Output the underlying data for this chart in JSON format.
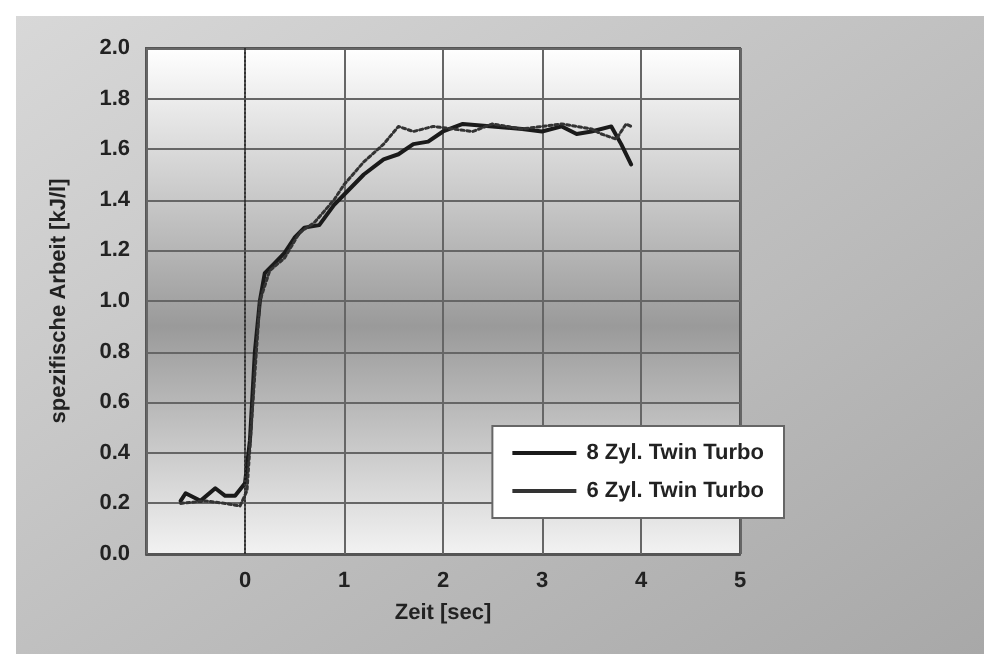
{
  "chart_data": {
    "type": "line",
    "xlabel": "Zeit [sec]",
    "ylabel": "spezifische Arbeit [kJ/l]",
    "xlim": [
      -1,
      5
    ],
    "xticks": [
      {
        "value": -1,
        "label": null
      },
      0,
      1,
      2,
      3,
      4,
      5
    ],
    "ylim": [
      0,
      2
    ],
    "yticks": [
      {
        "value": 0,
        "label": "0.0"
      },
      0.2,
      0.4,
      0.6,
      0.8,
      {
        "value": 1,
        "label": "1.0"
      },
      1.2,
      1.4,
      1.6,
      1.8,
      {
        "value": 2,
        "label": "2.0"
      }
    ],
    "grid": true,
    "legend": "bottom right",
    "marker": "none",
    "ref_lines": [
      {
        "axis": "x",
        "value": 0,
        "line_style": "dotted",
        "color": "#333333"
      }
    ],
    "series": [
      {
        "name": "8 Zyl. Twin Turbo",
        "color": "#1a1a1a",
        "line_style": "solid",
        "x": [
          -0.65,
          -0.6,
          -0.5,
          -0.45,
          -0.3,
          -0.2,
          -0.1,
          0,
          0.05,
          0.1,
          0.15,
          0.2,
          0.3,
          0.4,
          0.5,
          0.6,
          0.75,
          0.9,
          1.0,
          1.2,
          1.4,
          1.55,
          1.7,
          1.85,
          2.0,
          2.2,
          2.5,
          2.8,
          3.0,
          3.2,
          3.35,
          3.5,
          3.7,
          3.8,
          3.9
        ],
        "values": [
          0.21,
          0.24,
          0.22,
          0.21,
          0.26,
          0.23,
          0.23,
          0.28,
          0.45,
          0.8,
          1.0,
          1.11,
          1.15,
          1.19,
          1.25,
          1.29,
          1.3,
          1.38,
          1.42,
          1.5,
          1.56,
          1.58,
          1.62,
          1.63,
          1.67,
          1.7,
          1.69,
          1.68,
          1.67,
          1.69,
          1.66,
          1.67,
          1.69,
          1.62,
          1.54
        ]
      },
      {
        "name": "6 Zyl. Twin Turbo",
        "color": "#333333",
        "line_style": "dotted",
        "x": [
          -0.65,
          -0.4,
          -0.2,
          -0.05,
          0.02,
          0.08,
          0.15,
          0.25,
          0.4,
          0.55,
          0.7,
          0.9,
          1.0,
          1.2,
          1.4,
          1.55,
          1.7,
          1.9,
          2.1,
          2.3,
          2.5,
          2.8,
          3.0,
          3.2,
          3.5,
          3.6,
          3.75,
          3.85,
          3.9
        ],
        "values": [
          0.2,
          0.21,
          0.2,
          0.19,
          0.25,
          0.6,
          1.0,
          1.12,
          1.17,
          1.27,
          1.31,
          1.4,
          1.46,
          1.55,
          1.62,
          1.69,
          1.67,
          1.69,
          1.68,
          1.67,
          1.7,
          1.68,
          1.69,
          1.7,
          1.68,
          1.66,
          1.64,
          1.7,
          1.69
        ]
      }
    ]
  }
}
